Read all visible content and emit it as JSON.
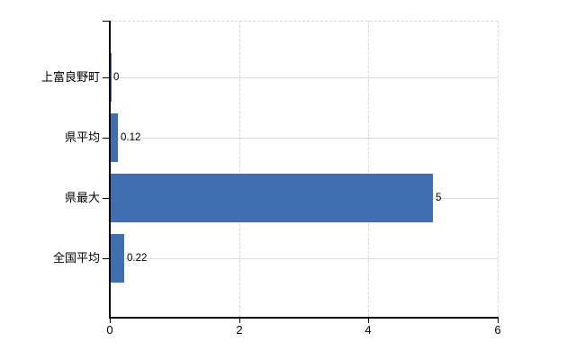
{
  "chart_data": {
    "type": "bar",
    "orientation": "horizontal",
    "title": "",
    "xlabel": "",
    "ylabel": "",
    "categories": [
      "上富良野町",
      "県平均",
      "県最大",
      "全国平均"
    ],
    "values": [
      0,
      0.12,
      5,
      0.22
    ],
    "value_labels": [
      "0",
      "0.12",
      "5",
      "0.22"
    ],
    "xlim": [
      0,
      6
    ],
    "xticks": [
      0,
      2,
      4,
      6
    ],
    "xtick_labels": [
      "0",
      "2",
      "4",
      "6"
    ],
    "grid": true,
    "legend": false,
    "colors": {
      "bar": "#3f6fb0",
      "axis": "#000000",
      "gridline_horizontal": "#d4ded4",
      "gridline_vertical": "#d6d6de",
      "plot_top_border": "#d9d3db",
      "background": "#ffffff",
      "text": "#000000"
    }
  }
}
